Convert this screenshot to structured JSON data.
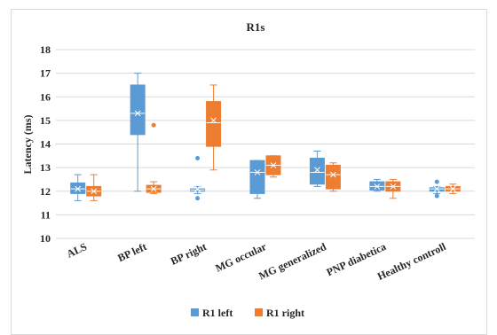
{
  "chart_data": {
    "type": "boxplot",
    "title": "R1s",
    "ylabel": "Latency (ms)",
    "ylim": [
      10,
      18
    ],
    "yticks": [
      10,
      11,
      12,
      13,
      14,
      15,
      16,
      17,
      18
    ],
    "categories": [
      "ALS",
      "BP left",
      "BP right",
      "MG occular",
      "MG generalized",
      "PNP diabetica",
      "Healthy controll"
    ],
    "grid": true,
    "legend_position": "bottom",
    "series": [
      {
        "name": "R1 left",
        "color": "#5b9bd5",
        "boxes": [
          {
            "min": 11.6,
            "q1": 11.9,
            "median": 12.1,
            "q3": 12.35,
            "max": 12.7,
            "mean": 12.1,
            "outliers": []
          },
          {
            "min": 12.0,
            "q1": 14.4,
            "median": 15.3,
            "q3": 16.5,
            "max": 17.0,
            "mean": 15.3,
            "outliers": []
          },
          {
            "min": 11.9,
            "q1": 12.0,
            "median": 12.05,
            "q3": 12.1,
            "max": 12.2,
            "mean": 12.1,
            "outliers": [
              13.4,
              11.7
            ]
          },
          {
            "min": 11.7,
            "q1": 11.9,
            "median": 12.8,
            "q3": 13.3,
            "max": 13.3,
            "mean": 12.8,
            "outliers": []
          },
          {
            "min": 12.2,
            "q1": 12.3,
            "median": 12.8,
            "q3": 13.4,
            "max": 13.7,
            "mean": 12.9,
            "outliers": []
          },
          {
            "min": 12.0,
            "q1": 12.05,
            "median": 12.2,
            "q3": 12.4,
            "max": 12.5,
            "mean": 12.2,
            "outliers": []
          },
          {
            "min": 11.9,
            "q1": 12.0,
            "median": 12.1,
            "q3": 12.15,
            "max": 12.2,
            "mean": 12.1,
            "outliers": [
              12.4,
              11.8
            ]
          }
        ]
      },
      {
        "name": "R1 right",
        "color": "#ed7d31",
        "boxes": [
          {
            "min": 11.6,
            "q1": 11.8,
            "median": 12.0,
            "q3": 12.2,
            "max": 12.7,
            "mean": 12.0,
            "outliers": []
          },
          {
            "min": 11.9,
            "q1": 11.95,
            "median": 12.1,
            "q3": 12.25,
            "max": 12.4,
            "mean": 12.1,
            "outliers": [
              14.8
            ]
          },
          {
            "min": 12.9,
            "q1": 13.9,
            "median": 14.9,
            "q3": 15.8,
            "max": 16.5,
            "mean": 15.0,
            "outliers": []
          },
          {
            "min": 12.6,
            "q1": 12.7,
            "median": 13.1,
            "q3": 13.5,
            "max": 13.5,
            "mean": 13.1,
            "outliers": []
          },
          {
            "min": 12.0,
            "q1": 12.1,
            "median": 12.7,
            "q3": 13.1,
            "max": 13.2,
            "mean": 12.7,
            "outliers": []
          },
          {
            "min": 11.7,
            "q1": 12.0,
            "median": 12.2,
            "q3": 12.4,
            "max": 12.5,
            "mean": 12.2,
            "outliers": []
          },
          {
            "min": 11.9,
            "q1": 12.0,
            "median": 12.1,
            "q3": 12.2,
            "max": 12.3,
            "mean": 12.1,
            "outliers": []
          }
        ]
      }
    ]
  }
}
